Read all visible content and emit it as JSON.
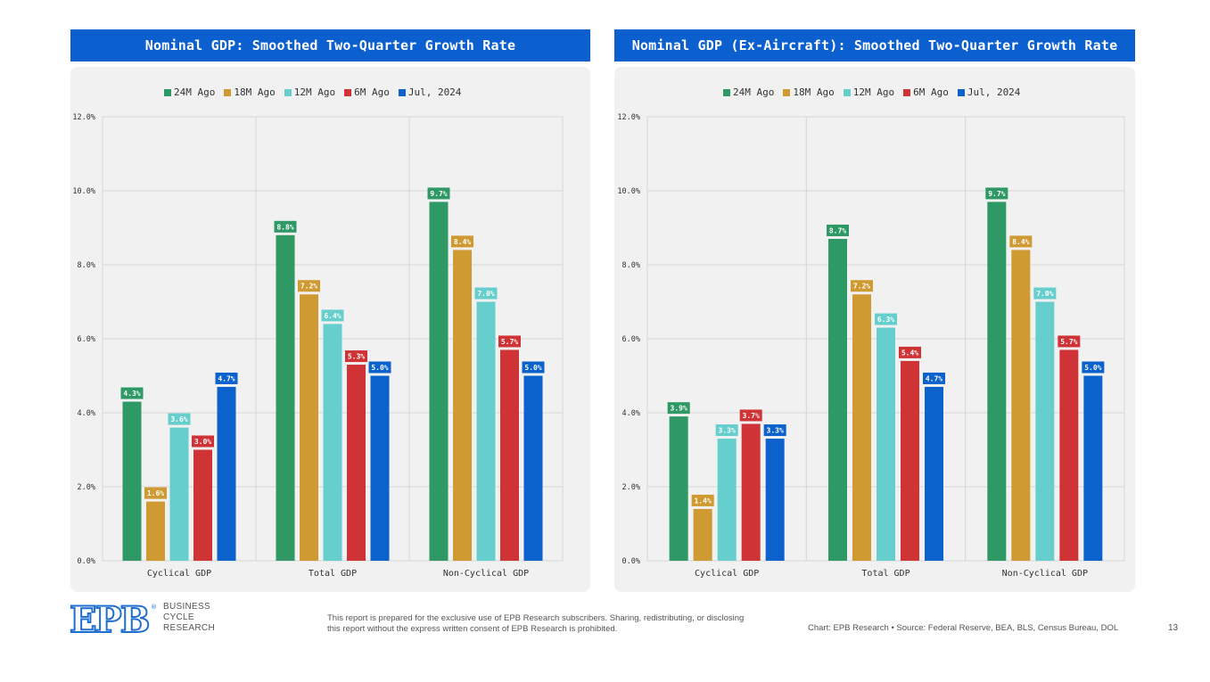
{
  "colors": {
    "title_bg": "#0b5fcf",
    "series": [
      "#2e9965",
      "#cf9a32",
      "#66cfcd",
      "#cf3336",
      "#0b62cc"
    ],
    "panel_bg": "#f1f1f1",
    "logo_blue": "#1f6fd1"
  },
  "chart_data": [
    {
      "type": "bar",
      "title": "Nominal GDP: Smoothed Two-Quarter Growth Rate",
      "categories": [
        "Cyclical GDP",
        "Total GDP",
        "Non-Cyclical GDP"
      ],
      "series": [
        {
          "name": "24M Ago",
          "values": [
            4.3,
            8.8,
            9.7
          ],
          "labels": [
            "4.3%",
            "8.8%",
            "9.7%"
          ]
        },
        {
          "name": "18M Ago",
          "values": [
            1.6,
            7.2,
            8.4
          ],
          "labels": [
            "1.6%",
            "7.2%",
            "8.4%"
          ]
        },
        {
          "name": "12M Ago",
          "values": [
            3.6,
            6.4,
            7.0
          ],
          "labels": [
            "3.6%",
            "6.4%",
            "7.0%"
          ]
        },
        {
          "name": "6M Ago",
          "values": [
            3.0,
            5.3,
            5.7
          ],
          "labels": [
            "3.0%",
            "5.3%",
            "5.7%"
          ]
        },
        {
          "name": "Jul, 2024",
          "values": [
            4.7,
            5.0,
            5.0
          ],
          "labels": [
            "4.7%",
            "5.0%",
            "5.0%"
          ]
        }
      ],
      "ylim": [
        0,
        12
      ],
      "yticks": [
        "0.0%",
        "2.0%",
        "4.0%",
        "6.0%",
        "8.0%",
        "10.0%",
        "12.0%"
      ],
      "xlabel": "",
      "ylabel": "",
      "legend_position": "top",
      "grid": true
    },
    {
      "type": "bar",
      "title": "Nominal GDP (Ex-Aircraft): Smoothed Two-Quarter Growth Rate",
      "categories": [
        "Cyclical GDP",
        "Total GDP",
        "Non-Cyclical GDP"
      ],
      "series": [
        {
          "name": "24M Ago",
          "values": [
            3.9,
            8.7,
            9.7
          ],
          "labels": [
            "3.9%",
            "8.7%",
            "9.7%"
          ]
        },
        {
          "name": "18M Ago",
          "values": [
            1.4,
            7.2,
            8.4
          ],
          "labels": [
            "1.4%",
            "7.2%",
            "8.4%"
          ]
        },
        {
          "name": "12M Ago",
          "values": [
            3.3,
            6.3,
            7.0
          ],
          "labels": [
            "3.3%",
            "6.3%",
            "7.0%"
          ]
        },
        {
          "name": "6M Ago",
          "values": [
            3.7,
            5.4,
            5.7
          ],
          "labels": [
            "3.7%",
            "5.4%",
            "5.7%"
          ]
        },
        {
          "name": "Jul, 2024",
          "values": [
            3.3,
            4.7,
            5.0
          ],
          "labels": [
            "3.3%",
            "4.7%",
            "5.0%"
          ]
        }
      ],
      "ylim": [
        0,
        12
      ],
      "yticks": [
        "0.0%",
        "2.0%",
        "4.0%",
        "6.0%",
        "8.0%",
        "10.0%",
        "12.0%"
      ],
      "xlabel": "",
      "ylabel": "",
      "legend_position": "top",
      "grid": true
    }
  ],
  "footer": {
    "logo_letters": "EPB",
    "logo_registered": "®",
    "brand_line1": "BUSINESS",
    "brand_line2": "CYCLE",
    "brand_line3": "RESEARCH",
    "disclaimer": "This report is prepared for the exclusive use of EPB Research subscribers. Sharing, redistributing, or disclosing this report without the express written consent of EPB Research is prohibited.",
    "source": "Chart: EPB Research  •  Source: Federal Reserve, BEA, BLS, Census Bureau, DOL",
    "page_number": "13"
  }
}
